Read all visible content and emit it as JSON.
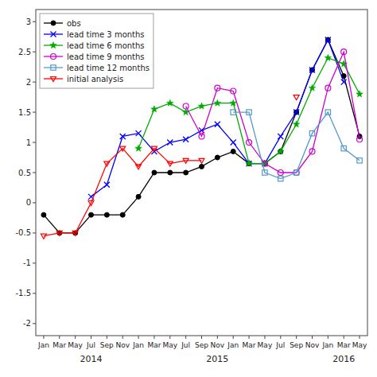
{
  "chart_data": {
    "type": "line",
    "categories": [
      "Jan",
      "Mar",
      "May",
      "Jul",
      "Sep",
      "Nov",
      "Jan",
      "Mar",
      "May",
      "Jul",
      "Sep",
      "Nov",
      "Jan",
      "Mar",
      "May",
      "Jul",
      "Sep",
      "Nov",
      "Jan",
      "Mar",
      "May"
    ],
    "series": [
      {
        "name": "obs",
        "color": "#000000",
        "marker": "circle",
        "values": [
          -0.2,
          -0.5,
          -0.5,
          -0.2,
          -0.2,
          -0.2,
          0.1,
          0.5,
          0.5,
          0.5,
          0.6,
          0.75,
          0.85,
          0.65,
          0.65,
          0.85,
          1.5,
          2.2,
          2.7,
          2.1,
          1.1
        ]
      },
      {
        "name": "lead time 3 months",
        "color": "#0000FF",
        "marker": "x",
        "values": [
          null,
          null,
          null,
          0.1,
          0.3,
          1.1,
          1.15,
          0.85,
          1.0,
          1.05,
          1.2,
          1.3,
          1.0,
          0.65,
          0.65,
          1.1,
          1.5,
          2.2,
          2.7,
          2.0,
          null
        ]
      },
      {
        "name": "lead time 6 months",
        "color": "#00AA00",
        "marker": "star",
        "values": [
          null,
          null,
          null,
          null,
          null,
          null,
          0.9,
          1.55,
          1.65,
          1.5,
          1.6,
          1.65,
          1.65,
          0.65,
          0.65,
          0.85,
          1.3,
          1.9,
          2.4,
          2.3,
          1.8
        ]
      },
      {
        "name": "lead time 9 months",
        "color": "#CC00CC",
        "marker": "circle-open",
        "values": [
          null,
          null,
          null,
          null,
          null,
          null,
          null,
          null,
          null,
          1.6,
          1.1,
          1.9,
          1.85,
          1.0,
          0.65,
          0.5,
          0.5,
          0.85,
          1.9,
          2.5,
          1.05
        ]
      },
      {
        "name": "lead time 12 months",
        "color": "#5599CC",
        "marker": "square-open",
        "values": [
          null,
          null,
          null,
          null,
          null,
          null,
          null,
          null,
          null,
          null,
          null,
          null,
          1.5,
          1.5,
          0.5,
          0.4,
          0.5,
          1.15,
          1.5,
          0.9,
          0.7
        ]
      },
      {
        "name": "initial analysis",
        "color": "#FF0000",
        "marker": "triangle-down-open",
        "values": [
          -0.55,
          -0.5,
          -0.5,
          0.0,
          0.65,
          0.9,
          0.6,
          0.9,
          0.65,
          0.7,
          0.7,
          null,
          null,
          null,
          null,
          null,
          1.75,
          null,
          null,
          null,
          null
        ]
      }
    ],
    "annotations": [
      {
        "text": "2014",
        "x": 3
      },
      {
        "text": "2015",
        "x": 11
      },
      {
        "text": "2016",
        "x": 19
      }
    ],
    "ylim": [
      -2.2,
      3.2
    ],
    "yticks": [
      -2,
      -1.5,
      -1,
      -0.5,
      0,
      0.5,
      1,
      1.5,
      2,
      2.5,
      3
    ],
    "grid": false,
    "legend": "upper left"
  }
}
